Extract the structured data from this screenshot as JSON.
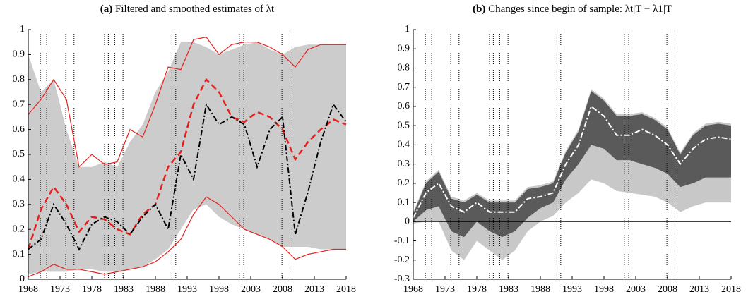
{
  "chart_data": [
    {
      "type": "line",
      "panel_label": "(a)",
      "title": "Filtered and smoothed estimates of λt",
      "x": [
        1968,
        1970,
        1972,
        1974,
        1976,
        1978,
        1980,
        1982,
        1984,
        1986,
        1988,
        1990,
        1992,
        1994,
        1996,
        1998,
        2000,
        2002,
        2004,
        2006,
        2008,
        2010,
        2012,
        2014,
        2016,
        2018
      ],
      "xlim": [
        1968,
        2018
      ],
      "xticks": [
        1968,
        1973,
        1978,
        1983,
        1988,
        1993,
        1998,
        2003,
        2008,
        2013,
        2018
      ],
      "ylim": [
        0,
        1
      ],
      "yticks": [
        0,
        0.1,
        0.2,
        0.3,
        0.4,
        0.5,
        0.6,
        0.7,
        0.8,
        0.9,
        1
      ],
      "vlines": [
        1969.9,
        1970.9,
        1973.9,
        1975.2,
        1980.0,
        1980.6,
        1981.6,
        1982.9,
        1990.6,
        1991.2,
        2001.2,
        2001.9,
        2007.9,
        2009.5
      ],
      "bands": [
        {
          "color": "#cccccc",
          "upper": [
            0.9,
            0.75,
            0.8,
            0.6,
            0.45,
            0.45,
            0.47,
            0.45,
            0.55,
            0.62,
            0.75,
            0.83,
            0.95,
            0.95,
            0.93,
            0.9,
            0.92,
            0.94,
            0.95,
            0.92,
            0.9,
            0.93,
            0.94,
            0.94,
            0.94,
            0.94
          ],
          "lower": [
            0.02,
            0.03,
            0.03,
            0.03,
            0.04,
            0.04,
            0.03,
            0.03,
            0.04,
            0.05,
            0.08,
            0.12,
            0.2,
            0.28,
            0.3,
            0.25,
            0.22,
            0.2,
            0.18,
            0.16,
            0.13,
            0.13,
            0.13,
            0.12,
            0.12,
            0.12
          ]
        }
      ],
      "series": [
        {
          "color": "#e8201c",
          "style": "solid",
          "width": 1.2,
          "values": [
            0.66,
            0.72,
            0.8,
            0.72,
            0.45,
            0.5,
            0.46,
            0.47,
            0.6,
            0.57,
            0.7,
            0.85,
            0.84,
            0.96,
            0.97,
            0.9,
            0.94,
            0.95,
            0.95,
            0.93,
            0.9,
            0.85,
            0.92,
            0.94,
            0.94,
            0.94
          ]
        },
        {
          "color": "#e8201c",
          "style": "solid",
          "width": 1.2,
          "values": [
            0.01,
            0.03,
            0.06,
            0.04,
            0.04,
            0.03,
            0.02,
            0.03,
            0.04,
            0.05,
            0.07,
            0.11,
            0.16,
            0.26,
            0.33,
            0.3,
            0.25,
            0.2,
            0.18,
            0.16,
            0.13,
            0.08,
            0.1,
            0.11,
            0.12,
            0.12
          ]
        },
        {
          "color": "#e8201c",
          "style": "dash",
          "width": 2.5,
          "values": [
            0.12,
            0.28,
            0.37,
            0.3,
            0.19,
            0.25,
            0.24,
            0.2,
            0.18,
            0.26,
            0.3,
            0.45,
            0.51,
            0.7,
            0.8,
            0.75,
            0.65,
            0.63,
            0.67,
            0.65,
            0.6,
            0.48,
            0.55,
            0.6,
            0.64,
            0.62
          ]
        },
        {
          "color": "#000000",
          "style": "dashdot",
          "width": 2,
          "values": [
            0.12,
            0.16,
            0.3,
            0.22,
            0.12,
            0.22,
            0.25,
            0.23,
            0.18,
            0.25,
            0.3,
            0.2,
            0.5,
            0.4,
            0.7,
            0.62,
            0.65,
            0.62,
            0.45,
            0.6,
            0.65,
            0.18,
            0.35,
            0.55,
            0.7,
            0.63
          ]
        }
      ]
    },
    {
      "type": "line",
      "panel_label": "(b)",
      "title": "Changes since begin of sample: λt|T − λ1|T",
      "x": [
        1968,
        1970,
        1972,
        1974,
        1976,
        1978,
        1980,
        1982,
        1984,
        1986,
        1988,
        1990,
        1992,
        1994,
        1996,
        1998,
        2000,
        2002,
        2004,
        2006,
        2008,
        2010,
        2012,
        2014,
        2016,
        2018
      ],
      "xlim": [
        1968,
        2018
      ],
      "xticks": [
        1968,
        1973,
        1978,
        1983,
        1988,
        1993,
        1998,
        2003,
        2008,
        2013,
        2018
      ],
      "ylim": [
        -0.3,
        1
      ],
      "yticks": [
        -0.3,
        -0.2,
        -0.1,
        0,
        0.1,
        0.2,
        0.3,
        0.4,
        0.5,
        0.6,
        0.7,
        0.8,
        0.9,
        1
      ],
      "vlines": [
        1969.9,
        1970.9,
        1973.9,
        1975.2,
        1980.0,
        1980.6,
        1981.6,
        1982.9,
        1990.6,
        1991.2,
        2001.2,
        2001.9,
        2007.9,
        2009.5
      ],
      "zero_line": true,
      "bands": [
        {
          "color": "#c8c8c8",
          "upper": [
            0.05,
            0.21,
            0.27,
            0.13,
            0.11,
            0.15,
            0.11,
            0.11,
            0.11,
            0.18,
            0.19,
            0.21,
            0.37,
            0.48,
            0.69,
            0.64,
            0.56,
            0.56,
            0.57,
            0.54,
            0.49,
            0.36,
            0.46,
            0.51,
            0.52,
            0.51
          ],
          "lower": [
            -0.01,
            0.0,
            0.0,
            -0.15,
            -0.2,
            -0.1,
            -0.15,
            -0.2,
            -0.15,
            -0.05,
            0.0,
            0.03,
            0.1,
            0.15,
            0.22,
            0.2,
            0.16,
            0.15,
            0.14,
            0.13,
            0.1,
            0.05,
            0.08,
            0.1,
            0.1,
            0.1
          ]
        },
        {
          "color": "#5a5a5a",
          "upper": [
            0.04,
            0.2,
            0.26,
            0.12,
            0.1,
            0.14,
            0.1,
            0.1,
            0.1,
            0.17,
            0.18,
            0.2,
            0.36,
            0.47,
            0.68,
            0.63,
            0.55,
            0.55,
            0.56,
            0.53,
            0.48,
            0.35,
            0.45,
            0.5,
            0.51,
            0.5
          ],
          "lower": [
            0.0,
            0.06,
            0.08,
            -0.05,
            -0.08,
            0.0,
            -0.05,
            -0.08,
            -0.05,
            0.02,
            0.07,
            0.1,
            0.22,
            0.3,
            0.4,
            0.38,
            0.32,
            0.32,
            0.3,
            0.28,
            0.25,
            0.18,
            0.2,
            0.23,
            0.23,
            0.23
          ]
        }
      ],
      "series": [
        {
          "color": "#ffffff",
          "style": "dashdot",
          "width": 2,
          "values": [
            0.02,
            0.15,
            0.2,
            0.08,
            0.05,
            0.1,
            0.05,
            0.05,
            0.05,
            0.12,
            0.13,
            0.15,
            0.3,
            0.4,
            0.6,
            0.55,
            0.45,
            0.45,
            0.48,
            0.45,
            0.4,
            0.3,
            0.38,
            0.43,
            0.44,
            0.43
          ]
        }
      ]
    }
  ]
}
